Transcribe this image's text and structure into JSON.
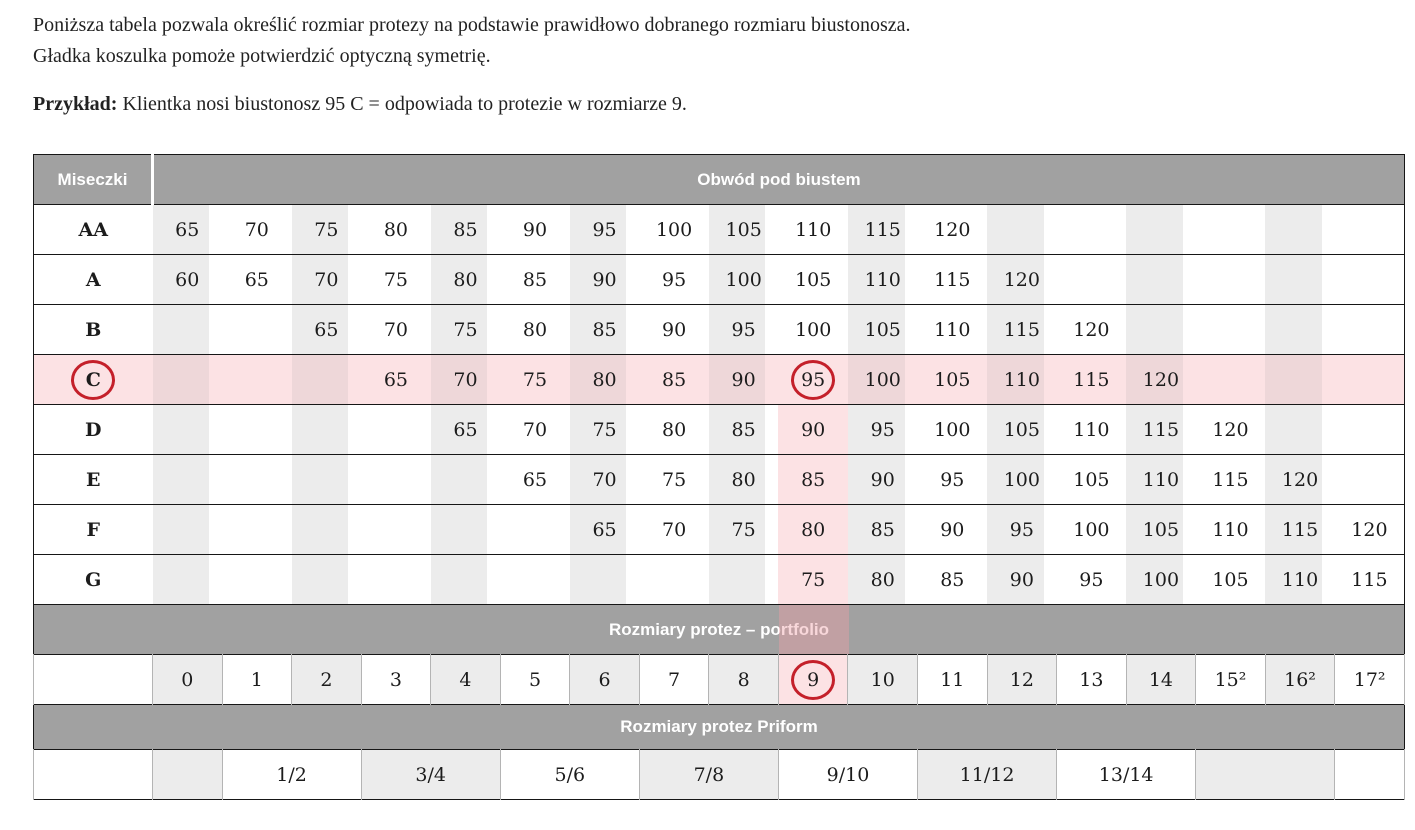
{
  "intro": {
    "line1": "Poniższa tabela pozwala określić rozmiar protezy na podstawie prawidłowo dobranego rozmiaru biustonosza.",
    "line2": "Gładka koszulka pomoże potwierdzić optyczną symetrię.",
    "example_label": "Przykład:",
    "example_text": " Klientka nosi biustonosz 95 C = odpowiada to protezie w rozmiarze 9."
  },
  "table": {
    "cups_header": "Miseczki",
    "band_header": "Obwód pod biustem",
    "portfolio_band": "Rozmiary protez – portfolio",
    "priform_band": "Rozmiary protez Priform",
    "num_columns": 18,
    "highlight": {
      "row_cup": "C",
      "column_index": 10,
      "circled_values": [
        "C",
        "95",
        "9"
      ]
    },
    "cup_rows": [
      {
        "cup": "AA",
        "cells": [
          "65",
          "70",
          "75",
          "80",
          "85",
          "90",
          "95",
          "100",
          "105",
          "110",
          "115",
          "120",
          "",
          "",
          "",
          "",
          "",
          ""
        ]
      },
      {
        "cup": "A",
        "cells": [
          "60",
          "65",
          "70",
          "75",
          "80",
          "85",
          "90",
          "95",
          "100",
          "105",
          "110",
          "115",
          "120",
          "",
          "",
          "",
          "",
          ""
        ]
      },
      {
        "cup": "B",
        "cells": [
          "",
          "",
          "65",
          "70",
          "75",
          "80",
          "85",
          "90",
          "95",
          "100",
          "105",
          "110",
          "115",
          "120",
          "",
          "",
          "",
          ""
        ]
      },
      {
        "cup": "C",
        "cells": [
          "",
          "",
          "",
          "65",
          "70",
          "75",
          "80",
          "85",
          "90",
          "95",
          "100",
          "105",
          "110",
          "115",
          "120",
          "",
          "",
          ""
        ]
      },
      {
        "cup": "D",
        "cells": [
          "",
          "",
          "",
          "",
          "65",
          "70",
          "75",
          "80",
          "85",
          "90",
          "95",
          "100",
          "105",
          "110",
          "115",
          "120",
          "",
          ""
        ]
      },
      {
        "cup": "E",
        "cells": [
          "",
          "",
          "",
          "",
          "",
          "65",
          "70",
          "75",
          "80",
          "85",
          "90",
          "95",
          "100",
          "105",
          "110",
          "115",
          "120",
          ""
        ]
      },
      {
        "cup": "F",
        "cells": [
          "",
          "",
          "",
          "",
          "",
          "",
          "65",
          "70",
          "75",
          "80",
          "85",
          "90",
          "95",
          "100",
          "105",
          "110",
          "115",
          "120"
        ]
      },
      {
        "cup": "G",
        "cells": [
          "",
          "",
          "",
          "",
          "",
          "",
          "",
          "",
          "",
          "75",
          "80",
          "85",
          "90",
          "95",
          "100",
          "105",
          "110",
          "115"
        ]
      }
    ],
    "portfolio_sizes": [
      "0",
      "1",
      "2",
      "3",
      "4",
      "5",
      "6",
      "7",
      "8",
      "9",
      "10",
      "11",
      "12",
      "13",
      "14",
      "15²",
      "16²",
      "17²"
    ],
    "priform_cells": [
      {
        "label": "",
        "span": 1,
        "gray": true
      },
      {
        "label": "1/2",
        "span": 2,
        "gray": false
      },
      {
        "label": "3/4",
        "span": 2,
        "gray": true
      },
      {
        "label": "5/6",
        "span": 2,
        "gray": false
      },
      {
        "label": "7/8",
        "span": 2,
        "gray": true
      },
      {
        "label": "9/10",
        "span": 2,
        "gray": false
      },
      {
        "label": "11/12",
        "span": 2,
        "gray": true
      },
      {
        "label": "13/14",
        "span": 2,
        "gray": false
      },
      {
        "label": "",
        "span": 2,
        "gray": true
      },
      {
        "label": "",
        "span": 1,
        "gray": false
      }
    ],
    "colors": {
      "band_gray": "#a1a1a1",
      "stripe_gray": "#ececec",
      "highlight_pink": "#fce2e4",
      "highlight_pink_gray": "#eed7d9",
      "circle_red": "#c4202a"
    }
  }
}
